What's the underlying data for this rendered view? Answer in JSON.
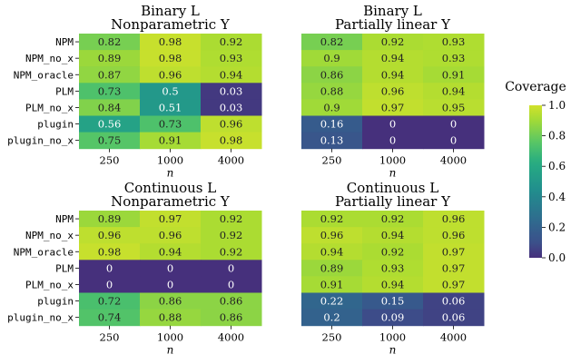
{
  "chart_data": {
    "type": "heatmap",
    "rows": [
      "NPM",
      "NPM_no_x",
      "NPM_oracle",
      "PLM",
      "PLM_no_x",
      "plugin",
      "plugin_no_x"
    ],
    "columns": [
      "250",
      "1000",
      "4000"
    ],
    "xlabel": "n",
    "colorbar": {
      "title": "Coverage",
      "range": [
        0.0,
        1.0
      ],
      "ticks": [
        "0.0",
        "0.2",
        "0.4",
        "0.6",
        "0.8",
        "1.0"
      ],
      "colormap": "viridis-like"
    },
    "panels": [
      {
        "title_line1": "Binary L",
        "title_line2": "Nonparametric Y",
        "values": [
          [
            "0.82",
            "0.98",
            "0.92"
          ],
          [
            "0.89",
            "0.98",
            "0.93"
          ],
          [
            "0.87",
            "0.96",
            "0.94"
          ],
          [
            "0.73",
            "0.5",
            "0.03"
          ],
          [
            "0.84",
            "0.51",
            "0.03"
          ],
          [
            "0.56",
            "0.73",
            "0.96"
          ],
          [
            "0.75",
            "0.91",
            "0.98"
          ]
        ]
      },
      {
        "title_line1": "Binary L",
        "title_line2": "Partially linear Y",
        "values": [
          [
            "0.82",
            "0.92",
            "0.93"
          ],
          [
            "0.9",
            "0.94",
            "0.93"
          ],
          [
            "0.86",
            "0.94",
            "0.91"
          ],
          [
            "0.88",
            "0.96",
            "0.94"
          ],
          [
            "0.9",
            "0.97",
            "0.95"
          ],
          [
            "0.16",
            "0",
            "0"
          ],
          [
            "0.13",
            "0",
            "0"
          ]
        ]
      },
      {
        "title_line1": "Continuous L",
        "title_line2": "Nonparametric Y",
        "values": [
          [
            "0.89",
            "0.97",
            "0.92"
          ],
          [
            "0.96",
            "0.96",
            "0.92"
          ],
          [
            "0.98",
            "0.94",
            "0.92"
          ],
          [
            "0",
            "0",
            "0"
          ],
          [
            "0",
            "0",
            "0"
          ],
          [
            "0.72",
            "0.86",
            "0.86"
          ],
          [
            "0.74",
            "0.88",
            "0.86"
          ]
        ]
      },
      {
        "title_line1": "Continuous L",
        "title_line2": "Partially linear Y",
        "values": [
          [
            "0.92",
            "0.92",
            "0.96"
          ],
          [
            "0.96",
            "0.94",
            "0.96"
          ],
          [
            "0.94",
            "0.92",
            "0.97"
          ],
          [
            "0.89",
            "0.93",
            "0.97"
          ],
          [
            "0.91",
            "0.94",
            "0.97"
          ],
          [
            "0.22",
            "0.15",
            "0.06"
          ],
          [
            "0.2",
            "0.09",
            "0.06"
          ]
        ]
      }
    ]
  }
}
